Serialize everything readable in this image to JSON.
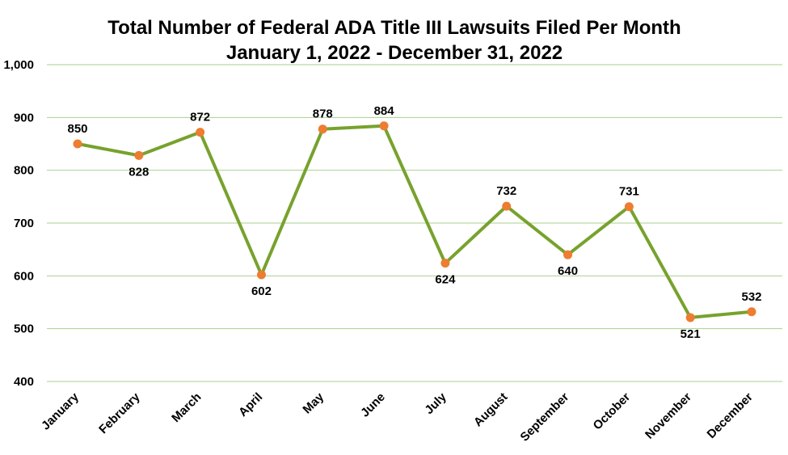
{
  "chart_data": {
    "type": "line",
    "title": "Total Number of Federal ADA Title III Lawsuits Filed Per Month",
    "subtitle": "January 1, 2022 - December 31, 2022",
    "categories": [
      "January",
      "February",
      "March",
      "April",
      "May",
      "June",
      "July",
      "August",
      "September",
      "October",
      "November",
      "December"
    ],
    "values": [
      850,
      828,
      872,
      602,
      878,
      884,
      624,
      732,
      640,
      731,
      521,
      532
    ],
    "ylim": [
      400,
      1000
    ],
    "yticks": [
      "400",
      "500",
      "600",
      "700",
      "800",
      "900",
      "1,000"
    ],
    "grid": true,
    "legend": "none",
    "line_color": "#77A22D",
    "marker_color": "#ED7D31",
    "grid_color": "#A9D18E"
  }
}
